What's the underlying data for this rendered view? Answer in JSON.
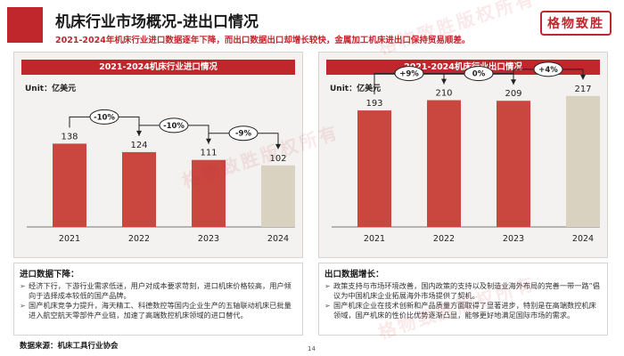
{
  "header": {
    "title": "机床行业市场概况-进出口情况",
    "subtitle": "2021-2024年机床行业进口数据逐年下降，而出口数据出口却增长较快，金属加工机床进出口保持贸易顺差。",
    "logo_text": "格物致胜"
  },
  "watermark_text": "格物致胜版权所有",
  "colors": {
    "accent": "#c0272d",
    "bar_red": "#c9473f",
    "bar_beige": "#d9d2c0"
  },
  "chart_data": [
    {
      "type": "bar",
      "title": "2021-2024机床行业进口情况",
      "unit": "Unit：亿美元",
      "categories": [
        "2021",
        "2022",
        "2023",
        "2024"
      ],
      "values": [
        138,
        124,
        111,
        102
      ],
      "value_labels": [
        "138",
        "124",
        "111",
        "102"
      ],
      "changes": [
        "-10%",
        "-10%",
        "-9%"
      ],
      "highlight_last_bar": true,
      "ylim": [
        0,
        230
      ]
    },
    {
      "type": "bar",
      "title": "2021-2024机床行业出口情况",
      "unit": "Unit：亿美元",
      "categories": [
        "2021",
        "2022",
        "2023",
        "2024"
      ],
      "values": [
        193,
        210,
        209,
        217
      ],
      "value_labels": [
        "193",
        "210",
        "209",
        "217"
      ],
      "changes": [
        "+9%",
        "0%",
        "+4%"
      ],
      "highlight_last_bar": true,
      "ylim": [
        0,
        230
      ]
    }
  ],
  "notes": {
    "import": {
      "heading": "进口数据下降：",
      "items": [
        "经济下行，下游行业需求低迷，用户对成本要求苛刻，进口机床价格较高，用户倾向于选择成本较低的国产品牌。",
        "国产机床竞争力提升，海天精工、科德数控等国内企业生产的五轴联动机床已批量进入航空航天零部件产业链，加速了高端数控机床领域的进口替代。"
      ]
    },
    "export": {
      "heading": "出口数据增长：",
      "items": [
        "政策支持与市场环境改善，国内政策的支持以及制造业海外布局的完善一带一路”倡议为中国机床企业拓展海外市场提供了契机。",
        "国产机床企业在技术创新和产品质量方面取得了显著进步，特别是在高端数控机床领域，国产机床的性价比优势逐渐凸显，能够更好地满足国际市场的需求。"
      ]
    }
  },
  "footer": {
    "source": "数据来源：机床工具行业协会",
    "page_number": "14"
  }
}
